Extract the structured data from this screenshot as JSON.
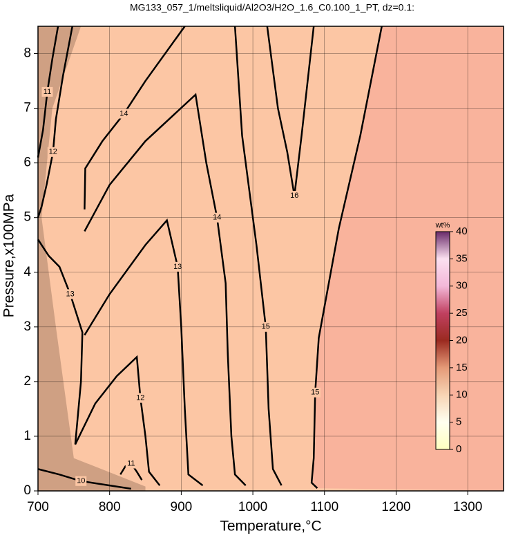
{
  "chart_data": {
    "type": "contour",
    "title": "MG133_057_1/meltsliquid/Al2O3/H2O_1.6_C0.100_1_PT, dz=0.1:",
    "x_label": "Temperature,°C",
    "y_label": "Pressure,x100MPa",
    "xlim": [
      700,
      1350
    ],
    "ylim": [
      0,
      8.5
    ],
    "xticks": [
      700,
      800,
      900,
      1000,
      1100,
      1200,
      1300
    ],
    "yticks": [
      0,
      1,
      2,
      3,
      4,
      5,
      6,
      7,
      8
    ],
    "grid": true,
    "background_color": "#fcc6a4",
    "high_color": "#f9b39c",
    "line_color": "#000000",
    "contours": [
      {
        "level": 15,
        "points": [
          [
            1180,
            8.5
          ],
          [
            1150,
            6.5
          ],
          [
            1120,
            4.8
          ],
          [
            1092,
            2.8
          ],
          [
            1087,
            1.8
          ],
          [
            1085,
            0.6
          ],
          [
            1082,
            0.15
          ],
          [
            1090,
            0.05
          ]
        ]
      },
      {
        "level": 16,
        "points": [
          [
            1020,
            8.5
          ],
          [
            1035,
            7
          ],
          [
            1048,
            6.2
          ],
          [
            1058,
            5.4
          ],
          [
            1068,
            6.5
          ],
          [
            1085,
            8.5
          ]
        ]
      },
      {
        "level": 15,
        "points": [
          [
            975,
            8.5
          ],
          [
            985,
            6.5
          ],
          [
            1005,
            4.5
          ],
          [
            1018,
            3
          ],
          [
            1022,
            1.5
          ],
          [
            1028,
            0.4
          ],
          [
            1040,
            0.1
          ]
        ]
      },
      {
        "level": 14,
        "points": [
          [
            765,
            4.75
          ],
          [
            800,
            5.6
          ],
          [
            850,
            6.4
          ],
          [
            920,
            7.25
          ],
          [
            935,
            6
          ],
          [
            950,
            5
          ],
          [
            962,
            3.8
          ],
          [
            965,
            2.5
          ],
          [
            970,
            1
          ],
          [
            975,
            0.3
          ],
          [
            990,
            0.1
          ]
        ]
      },
      {
        "level": 13,
        "points": [
          [
            765,
            2.85
          ],
          [
            800,
            3.6
          ],
          [
            850,
            4.5
          ],
          [
            880,
            4.95
          ],
          [
            895,
            4.1
          ],
          [
            900,
            3
          ],
          [
            905,
            1.5
          ],
          [
            910,
            0.3
          ],
          [
            930,
            0.1
          ]
        ]
      },
      {
        "level": 12,
        "points": [
          [
            752,
            0.85
          ],
          [
            780,
            1.6
          ],
          [
            810,
            2.1
          ],
          [
            838,
            2.45
          ],
          [
            843,
            1.7
          ],
          [
            850,
            1
          ],
          [
            855,
            0.35
          ],
          [
            870,
            0.1
          ]
        ]
      },
      {
        "level": 14,
        "points": [
          [
            765,
            5.15
          ],
          [
            766,
            5.9
          ],
          [
            790,
            6.4
          ],
          [
            820,
            6.9
          ],
          [
            850,
            7.5
          ],
          [
            905,
            8.5
          ]
        ]
      },
      {
        "level": 13,
        "points": [
          [
            700,
            4.6
          ],
          [
            715,
            4.3
          ],
          [
            730,
            4.1
          ],
          [
            745,
            3.6
          ],
          [
            762,
            2.9
          ],
          [
            760,
            2
          ],
          [
            752,
            0.85
          ]
        ]
      },
      {
        "level": 12,
        "points": [
          [
            748,
            8.5
          ],
          [
            735,
            7.6
          ],
          [
            725,
            6.8
          ],
          [
            721,
            6.2
          ],
          [
            712,
            5.6
          ],
          [
            705,
            5.2
          ],
          [
            700,
            5
          ]
        ]
      },
      {
        "level": 11,
        "points": [
          [
            728,
            8.5
          ],
          [
            720,
            7.9
          ],
          [
            713,
            7.3
          ],
          [
            707,
            6.6
          ],
          [
            700,
            6.1
          ]
        ]
      },
      {
        "level": 10,
        "points": [
          [
            700,
            0.4
          ],
          [
            730,
            0.3
          ],
          [
            760,
            0.18
          ],
          [
            800,
            0.1
          ],
          [
            830,
            0.04
          ]
        ]
      },
      {
        "level": 11,
        "points": [
          [
            815,
            0.3
          ],
          [
            822,
            0.45
          ],
          [
            830,
            0.5
          ],
          [
            838,
            0.35
          ],
          [
            845,
            0.2
          ]
        ]
      }
    ],
    "colorbar": {
      "label": "wt%",
      "lim": [
        0,
        40
      ],
      "ticks": [
        0,
        5,
        10,
        15,
        20,
        25,
        30,
        35,
        40
      ],
      "colors": [
        "#ffffc0",
        "#fffff0",
        "#f7d4b4",
        "#e59a78",
        "#9a2a20",
        "#c04060",
        "#f4b8d8",
        "#fbe0f0",
        "#6a2a6a"
      ]
    }
  }
}
